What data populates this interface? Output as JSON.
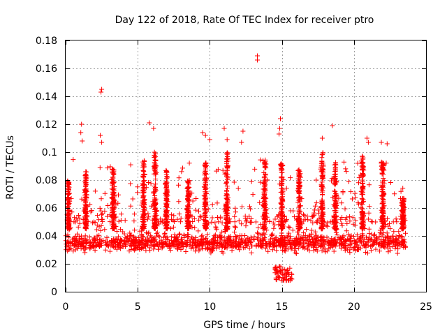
{
  "chart_data": {
    "type": "scatter",
    "title": "Day 122 of 2018, Rate Of TEC Index for receiver ptro",
    "xlabel": "GPS time / hours",
    "ylabel": "ROTI / TECUs",
    "xlim": [
      0,
      25
    ],
    "ylim": [
      0,
      0.18
    ],
    "xticks": [
      0,
      5,
      10,
      15,
      20,
      25
    ],
    "yticks": [
      0,
      0.02,
      0.04,
      0.06,
      0.08,
      0.1,
      0.12,
      0.14,
      0.16,
      0.18
    ],
    "xtick_labels": [
      "0",
      "5",
      "10",
      "15",
      "20",
      "25"
    ],
    "ytick_labels": [
      "0",
      "0.02",
      "0.04",
      "0.06",
      "0.08",
      "0.1",
      "0.12",
      "0.14",
      "0.16",
      "0.18"
    ],
    "grid": true,
    "marker": "+",
    "color": "#ff0000",
    "data_range": {
      "x": [
        0,
        23.6
      ],
      "y": [
        0.008,
        0.17
      ]
    },
    "baseline_band": {
      "low": 0.02,
      "high": 0.05
    },
    "notable_points": [
      {
        "x": 2.5,
        "y": 0.145
      },
      {
        "x": 2.45,
        "y": 0.143
      },
      {
        "x": 13.3,
        "y": 0.169
      },
      {
        "x": 13.3,
        "y": 0.166
      },
      {
        "x": 14.9,
        "y": 0.124
      },
      {
        "x": 14.85,
        "y": 0.117
      },
      {
        "x": 14.8,
        "y": 0.113
      },
      {
        "x": 1.1,
        "y": 0.12
      },
      {
        "x": 1.05,
        "y": 0.114
      },
      {
        "x": 1.15,
        "y": 0.108
      },
      {
        "x": 2.4,
        "y": 0.112
      },
      {
        "x": 2.5,
        "y": 0.107
      },
      {
        "x": 5.8,
        "y": 0.121
      },
      {
        "x": 6.1,
        "y": 0.117
      },
      {
        "x": 9.5,
        "y": 0.114
      },
      {
        "x": 9.7,
        "y": 0.112
      },
      {
        "x": 10.0,
        "y": 0.109
      },
      {
        "x": 11.0,
        "y": 0.117
      },
      {
        "x": 11.2,
        "y": 0.109
      },
      {
        "x": 12.3,
        "y": 0.115
      },
      {
        "x": 12.2,
        "y": 0.107
      },
      {
        "x": 18.5,
        "y": 0.119
      },
      {
        "x": 17.8,
        "y": 0.11
      },
      {
        "x": 20.9,
        "y": 0.11
      },
      {
        "x": 21.0,
        "y": 0.107
      },
      {
        "x": 22.3,
        "y": 0.106
      },
      {
        "x": 21.9,
        "y": 0.107
      }
    ],
    "spike_clusters": [
      {
        "x": 0.2,
        "y_max": 0.08
      },
      {
        "x": 1.4,
        "y_max": 0.087
      },
      {
        "x": 3.3,
        "y_max": 0.09
      },
      {
        "x": 5.4,
        "y_max": 0.094
      },
      {
        "x": 6.2,
        "y_max": 0.1
      },
      {
        "x": 7.0,
        "y_max": 0.088
      },
      {
        "x": 8.5,
        "y_max": 0.08
      },
      {
        "x": 9.7,
        "y_max": 0.095
      },
      {
        "x": 11.2,
        "y_max": 0.1
      },
      {
        "x": 13.8,
        "y_max": 0.094
      },
      {
        "x": 15.0,
        "y_max": 0.092
      },
      {
        "x": 16.2,
        "y_max": 0.088
      },
      {
        "x": 17.8,
        "y_max": 0.1
      },
      {
        "x": 18.7,
        "y_max": 0.093
      },
      {
        "x": 20.6,
        "y_max": 0.099
      },
      {
        "x": 22.0,
        "y_max": 0.093
      },
      {
        "x": 23.4,
        "y_max": 0.067
      }
    ]
  }
}
